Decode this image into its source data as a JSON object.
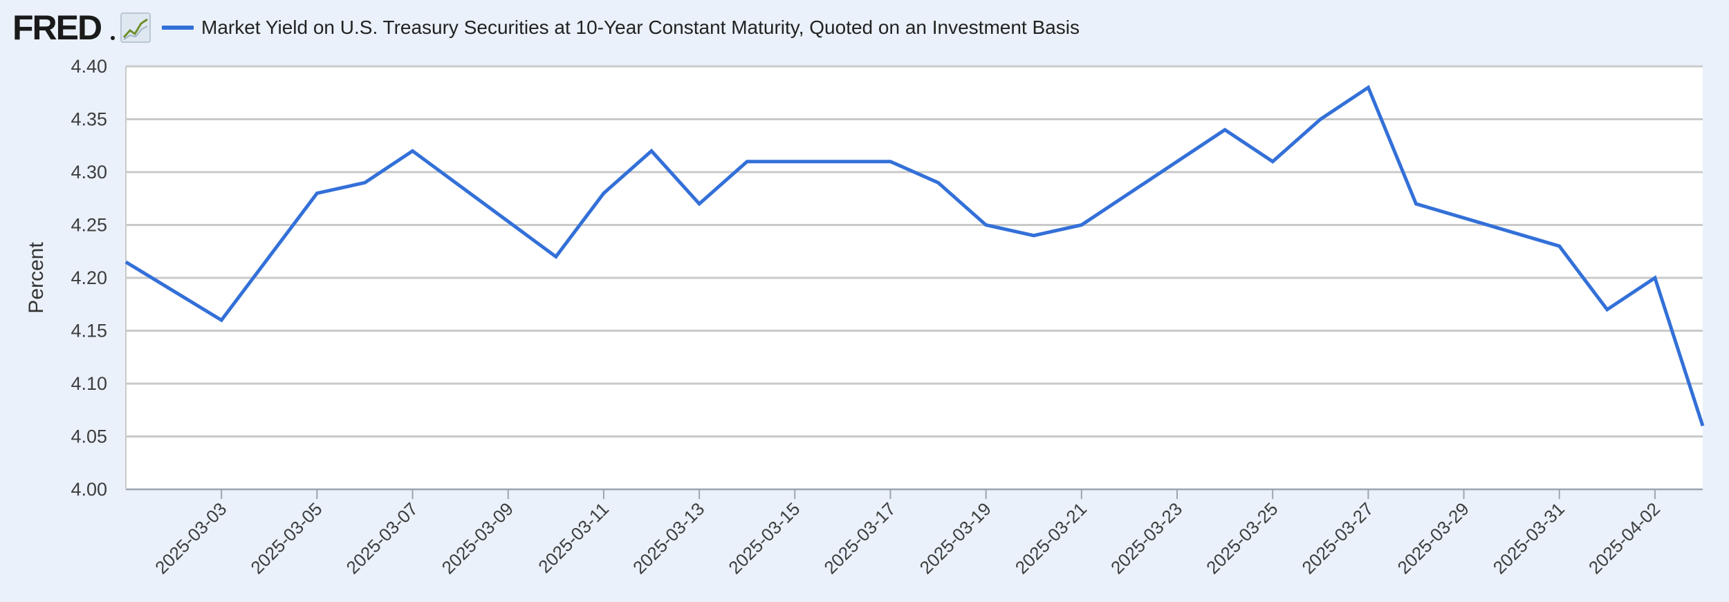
{
  "brand": {
    "logo_text": "FRED"
  },
  "chart_data": {
    "type": "line",
    "title": "",
    "xlabel": "",
    "ylabel": "Percent",
    "ylim": [
      4.0,
      4.4
    ],
    "xlim": [
      "2025-03-01",
      "2025-04-03"
    ],
    "y_ticks": [
      "4.00",
      "4.05",
      "4.10",
      "4.15",
      "4.20",
      "4.25",
      "4.30",
      "4.35",
      "4.40"
    ],
    "x_ticks": [
      "2025-03-03",
      "2025-03-05",
      "2025-03-07",
      "2025-03-09",
      "2025-03-11",
      "2025-03-13",
      "2025-03-15",
      "2025-03-17",
      "2025-03-19",
      "2025-03-21",
      "2025-03-23",
      "2025-03-25",
      "2025-03-27",
      "2025-03-29",
      "2025-03-31",
      "2025-04-02"
    ],
    "grid": true,
    "legend_position": "top-left",
    "series": [
      {
        "name": "Market Yield on U.S. Treasury Securities at 10-Year Constant Maturity, Quoted on an Investment Basis",
        "color": "#3370d8",
        "x": [
          "2025-03-01",
          "2025-03-03",
          "2025-03-05",
          "2025-03-06",
          "2025-03-07",
          "2025-03-10",
          "2025-03-11",
          "2025-03-12",
          "2025-03-13",
          "2025-03-14",
          "2025-03-17",
          "2025-03-18",
          "2025-03-19",
          "2025-03-20",
          "2025-03-21",
          "2025-03-24",
          "2025-03-25",
          "2025-03-26",
          "2025-03-27",
          "2025-03-28",
          "2025-03-31",
          "2025-04-01",
          "2025-04-02",
          "2025-04-03"
        ],
        "values": [
          4.215,
          4.16,
          4.28,
          4.29,
          4.32,
          4.22,
          4.28,
          4.32,
          4.27,
          4.31,
          4.31,
          4.29,
          4.25,
          4.24,
          4.25,
          4.34,
          4.31,
          4.35,
          4.38,
          4.27,
          4.23,
          4.17,
          4.2,
          4.06
        ]
      }
    ]
  }
}
